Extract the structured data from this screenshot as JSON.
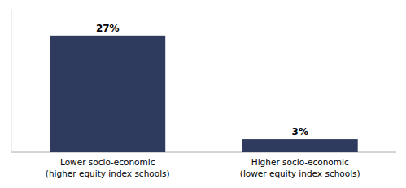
{
  "chart_data": {
    "type": "bar",
    "categories": [
      "Lower socio-economic\n(higher equity index schools)",
      "Higher socio-economic\n(lower equity index schools)"
    ],
    "values": [
      27,
      3
    ],
    "value_labels": [
      "27%",
      "3%"
    ],
    "color": "#2E3B5E",
    "ylim": [
      0,
      33
    ],
    "data_labels": true,
    "tick_labels": "x"
  }
}
